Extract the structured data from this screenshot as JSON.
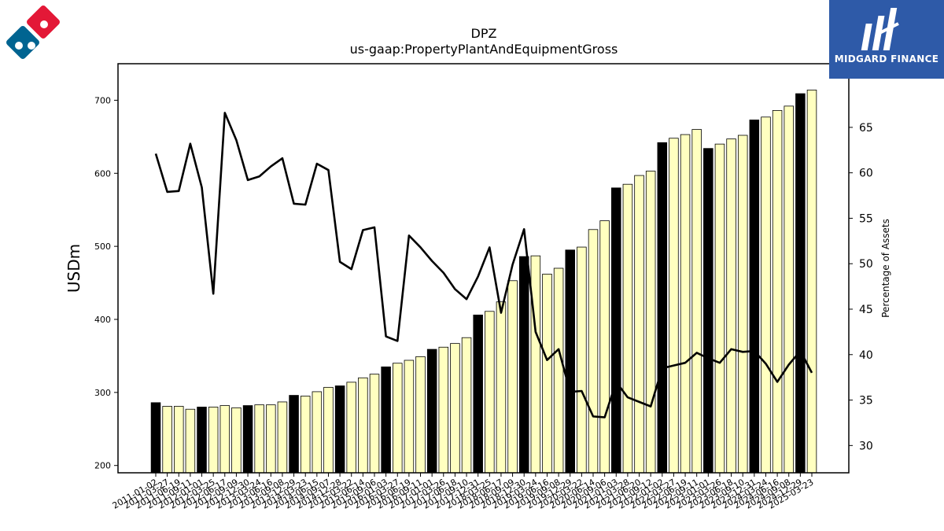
{
  "brand": {
    "name": "MIDGARD FINANCE",
    "color": "#2e5aa8",
    "icon": "midgard-logo-icon"
  },
  "company_logo": {
    "icon": "dominos-logo-icon",
    "colors": [
      "#e31837",
      "#006491"
    ]
  },
  "chart_data": {
    "type": "bar",
    "title": "DPZ",
    "subtitle": "us-gaap:PropertyPlantAndEquipmentGross",
    "ylabel": "USDm",
    "ylabel_right": "Percentage of Assets",
    "ylim": [
      190,
      750
    ],
    "ylim_right": [
      27,
      72
    ],
    "yticks": [
      200,
      300,
      400,
      500,
      600,
      700
    ],
    "yticks_right": [
      30,
      35,
      40,
      45,
      50,
      55,
      60,
      65
    ],
    "grid": false,
    "colors": {
      "annual_bar": "#000000",
      "quarter_bar": "#ffffc0",
      "bar_edge": "#000000",
      "line": "#000000"
    },
    "categories": [
      "2011-01-02",
      "2011-03-27",
      "2011-06-19",
      "2011-09-11",
      "2012-01-01",
      "2012-03-25",
      "2012-06-17",
      "2012-09-09",
      "2012-12-30",
      "2013-03-24",
      "2013-06-16",
      "2013-09-08",
      "2013-12-29",
      "2014-03-23",
      "2014-06-15",
      "2014-09-07",
      "2014-12-28",
      "2015-03-22",
      "2015-06-14",
      "2015-09-06",
      "2016-01-03",
      "2016-03-27",
      "2016-06-19",
      "2016-09-11",
      "2017-01-01",
      "2017-03-26",
      "2017-06-18",
      "2017-09-10",
      "2017-12-31",
      "2018-03-25",
      "2018-06-17",
      "2018-09-09",
      "2018-12-30",
      "2019-03-24",
      "2019-06-16",
      "2019-09-08",
      "2019-12-29",
      "2020-03-22",
      "2020-06-14",
      "2020-09-06",
      "2021-01-03",
      "2021-03-28",
      "2021-06-20",
      "2021-09-12",
      "2022-01-02",
      "2022-03-27",
      "2022-06-19",
      "2022-09-11",
      "2023-01-01",
      "2023-03-26",
      "2023-06-18",
      "2023-09-10",
      "2023-12-31",
      "2024-03-24",
      "2024-06-16",
      "2024-09-08",
      "2024-12-29",
      "2025-03-23"
    ],
    "annual_flags": [
      1,
      0,
      0,
      0,
      1,
      0,
      0,
      0,
      1,
      0,
      0,
      0,
      1,
      0,
      0,
      0,
      1,
      0,
      0,
      0,
      1,
      0,
      0,
      0,
      1,
      0,
      0,
      0,
      1,
      0,
      0,
      0,
      1,
      0,
      0,
      0,
      1,
      0,
      0,
      0,
      1,
      0,
      0,
      0,
      1,
      0,
      0,
      0,
      1,
      0,
      0,
      0,
      1,
      0,
      0,
      0,
      1,
      0
    ],
    "series": [
      {
        "name": "USDm",
        "type": "bar",
        "values": [
          286,
          281,
          281,
          277,
          280,
          280,
          282,
          279,
          282,
          283,
          283,
          287,
          296,
          295,
          301,
          307,
          309,
          314,
          320,
          325,
          335,
          340,
          344,
          349,
          359,
          362,
          367,
          375,
          406,
          411,
          424,
          453,
          486,
          487,
          462,
          470,
          495,
          499,
          523,
          535,
          580,
          585,
          597,
          603,
          642,
          648,
          653,
          660,
          634,
          640,
          647,
          652,
          673,
          677,
          686,
          692,
          709,
          714
        ]
      },
      {
        "name": "Percentage of Assets",
        "type": "line",
        "axis": "right",
        "values": [
          62.1,
          57.9,
          58.0,
          63.2,
          58.4,
          46.7,
          66.6,
          63.6,
          59.2,
          59.6,
          60.7,
          61.6,
          56.6,
          56.5,
          61.0,
          60.3,
          50.2,
          49.4,
          53.7,
          54.0,
          42.0,
          41.5,
          53.1,
          51.8,
          50.3,
          49.0,
          47.2,
          46.1,
          48.6,
          51.8,
          44.6,
          49.9,
          53.8,
          42.5,
          39.4,
          40.6,
          35.9,
          36.0,
          33.2,
          33.1,
          37.0,
          35.3,
          34.8,
          34.3,
          38.5,
          38.8,
          39.1,
          40.2,
          39.6,
          39.1,
          40.6,
          40.3,
          40.4,
          39.0,
          37.0,
          38.9,
          40.4,
          38.0
        ]
      }
    ]
  }
}
